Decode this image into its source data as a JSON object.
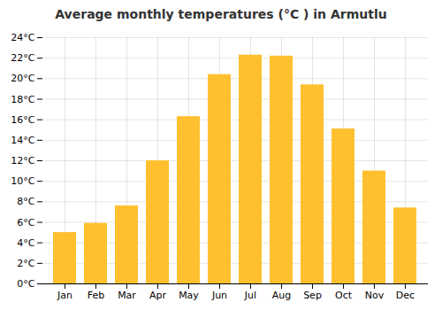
{
  "chart_data": {
    "type": "bar",
    "title": "Average monthly temperatures (°C ) in Armutlu",
    "categories": [
      "Jan",
      "Feb",
      "Mar",
      "Apr",
      "May",
      "Jun",
      "Jul",
      "Aug",
      "Sep",
      "Oct",
      "Nov",
      "Dec"
    ],
    "values": [
      5.0,
      5.9,
      7.6,
      12.0,
      16.3,
      20.4,
      22.3,
      22.2,
      19.4,
      15.1,
      11.0,
      7.4
    ],
    "color": "#FFC030",
    "ylim": [
      0,
      24
    ],
    "yticks": [
      {
        "value": 0,
        "label": "0°C"
      },
      {
        "value": 2,
        "label": "2°C"
      },
      {
        "value": 4,
        "label": "4°C"
      },
      {
        "value": 6,
        "label": "6°C"
      },
      {
        "value": 8,
        "label": "8°C"
      },
      {
        "value": 10,
        "label": "10°C"
      },
      {
        "value": 12,
        "label": "12°C"
      },
      {
        "value": 14,
        "label": "14°C"
      },
      {
        "value": 16,
        "label": "16°C"
      },
      {
        "value": 18,
        "label": "18°C"
      },
      {
        "value": 20,
        "label": "20°C"
      },
      {
        "value": 22,
        "label": "22°C"
      },
      {
        "value": 24,
        "label": "24°C"
      }
    ],
    "grid": true
  }
}
